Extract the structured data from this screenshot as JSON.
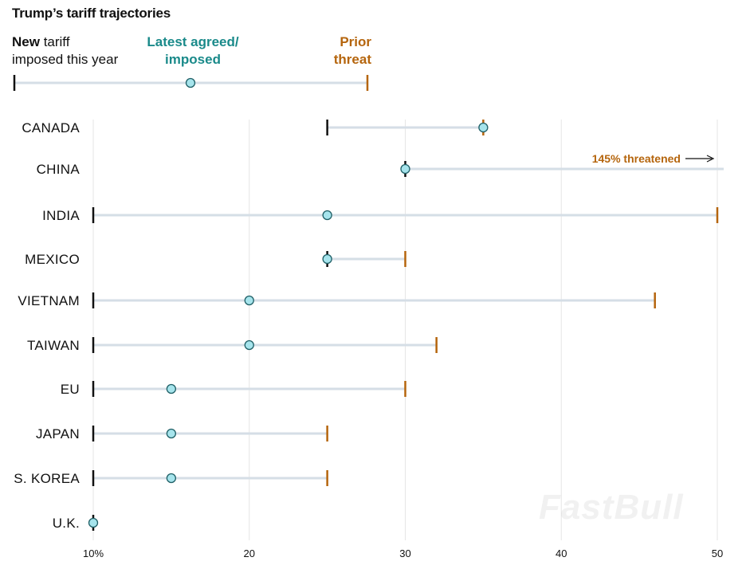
{
  "chart_data": {
    "type": "dumbbell",
    "title": "Trump’s tariff trajectories",
    "legend": {
      "new_bold": "New",
      "new_rest": " tariff",
      "new_line2": "imposed this year",
      "latest_line1": "Latest agreed/",
      "latest_line2": "imposed",
      "prior_line1": "Prior",
      "prior_line2": "threat"
    },
    "xlim": [
      10,
      50
    ],
    "xticks": [
      {
        "value": 10,
        "label": "10%"
      },
      {
        "value": 20,
        "label": "20"
      },
      {
        "value": 30,
        "label": "30"
      },
      {
        "value": 40,
        "label": "40"
      },
      {
        "value": 50,
        "label": "50"
      }
    ],
    "series_names": [
      "New tariff imposed this year",
      "Latest agreed/imposed",
      "Prior threat"
    ],
    "rows": [
      {
        "country": "CANADA",
        "new": 25,
        "latest": 35,
        "prior": 35
      },
      {
        "country": "CHINA",
        "new": 30,
        "latest": 30,
        "prior": 145
      },
      {
        "country": "INDIA",
        "new": 10,
        "latest": 25,
        "prior": 50
      },
      {
        "country": "MEXICO",
        "new": 25,
        "latest": 25,
        "prior": 30
      },
      {
        "country": "VIETNAM",
        "new": 10,
        "latest": 20,
        "prior": 46
      },
      {
        "country": "TAIWAN",
        "new": 10,
        "latest": 20,
        "prior": 32
      },
      {
        "country": "EU",
        "new": 10,
        "latest": 15,
        "prior": 30
      },
      {
        "country": "JAPAN",
        "new": 10,
        "latest": 15,
        "prior": 25
      },
      {
        "country": "S. KOREA",
        "new": 10,
        "latest": 15,
        "prior": 25
      },
      {
        "country": "U.K.",
        "new": 10,
        "latest": 10,
        "prior": null
      }
    ],
    "annotation": "145% threatened",
    "colors": {
      "new": "#111111",
      "latest_fill": "#a6e4ec",
      "latest_stroke": "#1f5f66",
      "prior": "#b5650d",
      "range": "#d5dee6",
      "grid": "#e6e6e6"
    }
  },
  "watermark": "FastBull"
}
